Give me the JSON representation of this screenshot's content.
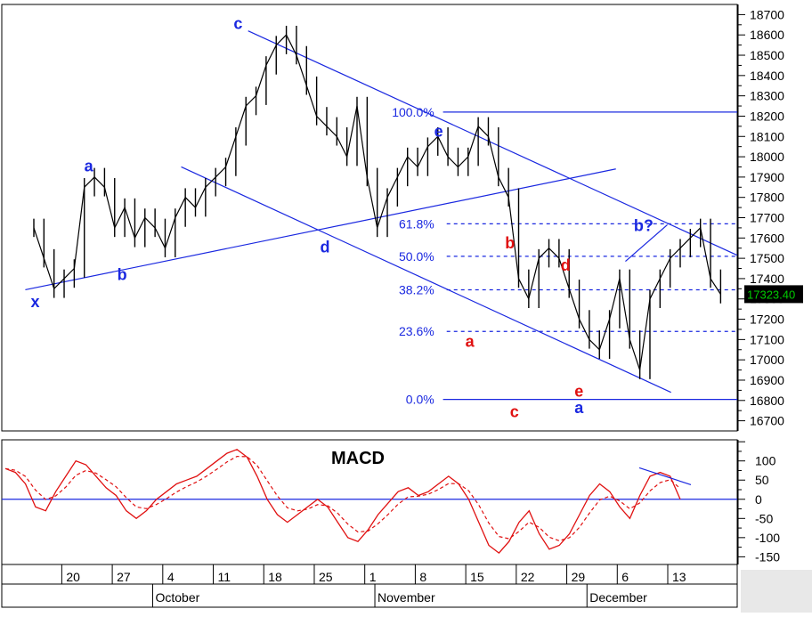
{
  "chart_data": [
    {
      "type": "line",
      "price_axis": {
        "ylim": [
          16650,
          18750
        ],
        "ticks": [
          16700,
          16800,
          16900,
          17000,
          17100,
          17200,
          17300,
          17400,
          17500,
          17600,
          17700,
          17800,
          17900,
          18000,
          18100,
          18200,
          18300,
          18400,
          18500,
          18600,
          18700
        ],
        "last_price_label": "17323.40",
        "last_price": 17323.4,
        "last_price_color": "#00cc00"
      },
      "x_axis": {
        "day_ticks": [
          {
            "label": "20",
            "i": 4
          },
          {
            "label": "27",
            "i": 9
          },
          {
            "label": "4",
            "i": 14
          },
          {
            "label": "11",
            "i": 19
          },
          {
            "label": "18",
            "i": 24
          },
          {
            "label": "25",
            "i": 29
          },
          {
            "label": "1",
            "i": 34
          },
          {
            "label": "8",
            "i": 39
          },
          {
            "label": "15",
            "i": 44
          },
          {
            "label": "22",
            "i": 49
          },
          {
            "label": "29",
            "i": 54
          },
          {
            "label": "6",
            "i": 59
          },
          {
            "label": "13",
            "i": 64
          }
        ],
        "month_ticks": [
          {
            "label": "October",
            "i": 13
          },
          {
            "label": "November",
            "i": 35
          },
          {
            "label": "December",
            "i": 56
          }
        ]
      },
      "close": [
        17650,
        17500,
        17350,
        17400,
        17450,
        17850,
        17900,
        17850,
        17650,
        17750,
        17600,
        17700,
        17650,
        17550,
        17700,
        17800,
        17750,
        17850,
        17900,
        17950,
        18100,
        18250,
        18300,
        18450,
        18550,
        18600,
        18500,
        18350,
        18200,
        18150,
        18100,
        18000,
        18250,
        17900,
        17650,
        17800,
        17900,
        18000,
        17950,
        18050,
        18100,
        18000,
        17950,
        18000,
        18150,
        18100,
        17900,
        17800,
        17400,
        17300,
        17500,
        17550,
        17500,
        17350,
        17200,
        17100,
        17050,
        17200,
        17400,
        17100,
        16950,
        17300,
        17400,
        17500,
        17550,
        17600,
        17650,
        17400,
        17323
      ],
      "fibonacci": {
        "color": "#1a28e0",
        "levels": [
          {
            "label": "100.0%",
            "value": 18220
          },
          {
            "label": "61.8%",
            "value": 17670
          },
          {
            "label": "50.0%",
            "value": 17510
          },
          {
            "label": "38.2%",
            "value": 17345
          },
          {
            "label": "23.6%",
            "value": 17140
          },
          {
            "label": "0.0%",
            "value": 16805
          }
        ]
      },
      "wave_labels": [
        {
          "text": "x",
          "color": "#1a28e0",
          "i": 7.5,
          "y": 17285
        },
        {
          "text": "a",
          "color": "#1a28e0",
          "i": 19.5,
          "y": 17955
        },
        {
          "text": "b",
          "color": "#1a28e0",
          "i": 27,
          "y": 17420
        },
        {
          "text": "c",
          "color": "#1a28e0",
          "i": 53,
          "y": 18655
        },
        {
          "text": "d",
          "color": "#1a28e0",
          "i": 72.5,
          "y": 17555
        },
        {
          "text": "e",
          "color": "#1a28e0",
          "i": 98,
          "y": 18125
        },
        {
          "text": "b",
          "color": "#e01010",
          "i": 114,
          "y": 17575
        },
        {
          "text": "a",
          "color": "#e01010",
          "i": 105,
          "y": 17090
        },
        {
          "text": "d",
          "color": "#e01010",
          "i": 126.5,
          "y": 17465
        },
        {
          "text": "c",
          "color": "#e01010",
          "i": 115,
          "y": 16745
        },
        {
          "text": "e",
          "color": "#e01010",
          "i": 129.5,
          "y": 16845
        },
        {
          "text": "a",
          "color": "#1a28e0",
          "i": 129.5,
          "y": 16765
        },
        {
          "text": "b?",
          "color": "#1a28e0",
          "i": 144,
          "y": 17660
        }
      ]
    },
    {
      "type": "line",
      "title": "MACD",
      "ylim": [
        -170,
        155
      ],
      "ticks": [
        100,
        50,
        0,
        -50,
        -100,
        -150
      ],
      "macd_color": "#e01010",
      "signal_color": "#e01010",
      "macd": [
        80,
        70,
        40,
        -20,
        -30,
        20,
        60,
        100,
        90,
        60,
        30,
        10,
        -30,
        -50,
        -30,
        0,
        20,
        40,
        50,
        60,
        80,
        100,
        120,
        130,
        110,
        60,
        0,
        -40,
        -60,
        -40,
        -20,
        0,
        -20,
        -60,
        -100,
        -110,
        -80,
        -40,
        -10,
        20,
        30,
        10,
        20,
        40,
        60,
        40,
        0,
        -60,
        -120,
        -140,
        -110,
        -60,
        -30,
        -90,
        -130,
        -120,
        -90,
        -40,
        10,
        40,
        20,
        -20,
        -50,
        10,
        60,
        70,
        60,
        0
      ]
    }
  ]
}
